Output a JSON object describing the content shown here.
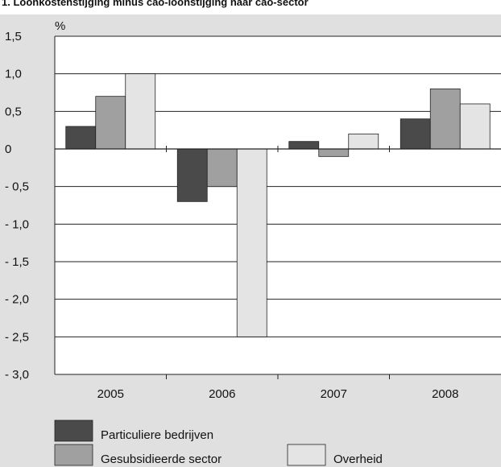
{
  "title": "1. Loonkostenstijging minus cao-loonstijging naar cao-sector",
  "colors": {
    "panel_bg": "#e0e0e0",
    "plot_bg": "#ffffff",
    "grid": "#222222",
    "particuliere": "#4a4a4a",
    "gesubsidieerde": "#a0a0a0",
    "overheid": "#e4e4e4"
  },
  "chart_data": {
    "type": "bar",
    "unit_label": "%",
    "categories": [
      "2005",
      "2006",
      "2007",
      "2008"
    ],
    "series": [
      {
        "name": "Particuliere bedrijven",
        "values": [
          0.3,
          -0.7,
          0.1,
          0.4
        ],
        "color_key": "particuliere"
      },
      {
        "name": "Gesubsidieerde sector",
        "values": [
          0.7,
          -0.5,
          -0.1,
          0.8
        ],
        "color_key": "gesubsidieerde"
      },
      {
        "name": "Overheid",
        "values": [
          1.0,
          -2.5,
          0.2,
          0.6
        ],
        "color_key": "overheid"
      }
    ],
    "ylim": [
      -3.0,
      1.5
    ],
    "y_ticks": [
      1.5,
      1.0,
      0.5,
      0,
      -0.5,
      -1.0,
      -1.5,
      -2.0,
      -2.5,
      -3.0
    ],
    "y_tick_labels": [
      "1,5",
      "1,0",
      "0,5",
      "0",
      "- 0,5",
      "- 1,0",
      "- 1,5",
      "- 2,0",
      "- 2,5",
      "- 3,0"
    ],
    "grid": true,
    "legend_position": "bottom-left"
  }
}
